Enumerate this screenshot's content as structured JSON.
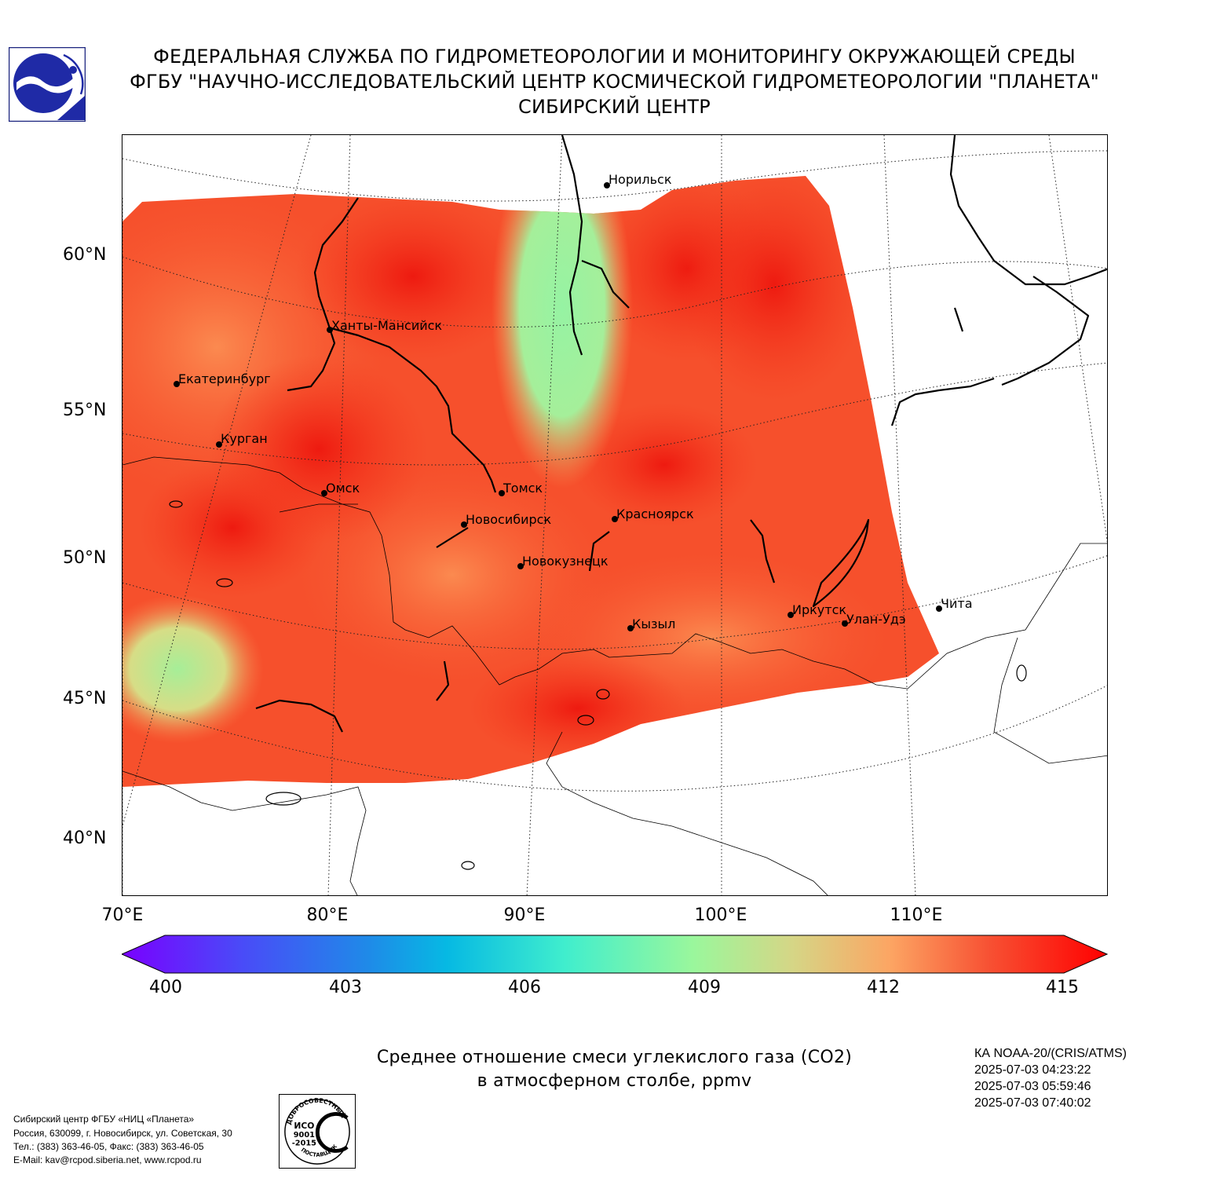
{
  "header": {
    "line1": "ФЕДЕРАЛЬНАЯ СЛУЖБА ПО ГИДРОМЕТЕОРОЛОГИИ И МОНИТОРИНГУ ОКРУЖАЮЩЕЙ СРЕДЫ",
    "line2": "ФГБУ \"НАУЧНО-ИССЛЕДОВАТЕЛЬСКИЙ ЦЕНТР КОСМИЧЕСКОЙ ГИДРОМЕТЕОРОЛОГИИ \"ПЛАНЕТА\"",
    "line3": "СИБИРСКИЙ ЦЕНТР"
  },
  "map": {
    "lat_labels": [
      "60°N",
      "55°N",
      "50°N",
      "45°N",
      "40°N"
    ],
    "lon_labels": [
      "70°E",
      "80°E",
      "90°E",
      "100°E",
      "110°E"
    ],
    "cities": [
      {
        "name": "Норильск"
      },
      {
        "name": "Ханты-Мансийск"
      },
      {
        "name": "Екатеринбург"
      },
      {
        "name": "Курган"
      },
      {
        "name": "Омск"
      },
      {
        "name": "Томск"
      },
      {
        "name": "Новосибирск"
      },
      {
        "name": "Красноярск"
      },
      {
        "name": "Новокузнецк"
      },
      {
        "name": "Кызыл"
      },
      {
        "name": "Иркутск"
      },
      {
        "name": "Улан-Удэ"
      },
      {
        "name": "Чита"
      }
    ],
    "colors": {
      "data_red": "#f43a1f",
      "data_deep_red": "#ee1a10",
      "data_orange": "#fb7b46",
      "data_green": "#96f3a3"
    }
  },
  "colorbar": {
    "ticks": [
      "400",
      "403",
      "406",
      "409",
      "412",
      "415"
    ],
    "min": 400,
    "max": 415
  },
  "subtitle": {
    "line1": "Среднее отношение смеси углекислого газа (CO2)",
    "line2": "в атмосферном столбе, ppmv"
  },
  "satellite": {
    "name": "КА NOAA-20/(CRIS/ATMS)",
    "times": [
      "2025-07-03 04:23:22",
      "2025-07-03 05:59:46",
      "2025-07-03 07:40:02"
    ]
  },
  "footer": {
    "lines": [
      "Сибирский центр ФГБУ «НИЦ «Планета»",
      "Россия, 630099, г. Новосибирск, ул. Советская, 30",
      "Тел.: (383) 363-46-05, Факс: (383) 363-46-05",
      "E-Mail: kav@rcpod.siberia.net, www.rcpod.ru"
    ]
  },
  "iso_stamp": {
    "top_text": "ДОБРОСОВЕСТНЫЙ",
    "center_text": [
      "ИСО",
      "9001",
      "-2015"
    ],
    "bottom_text": "ПОСТАВЩИК"
  }
}
